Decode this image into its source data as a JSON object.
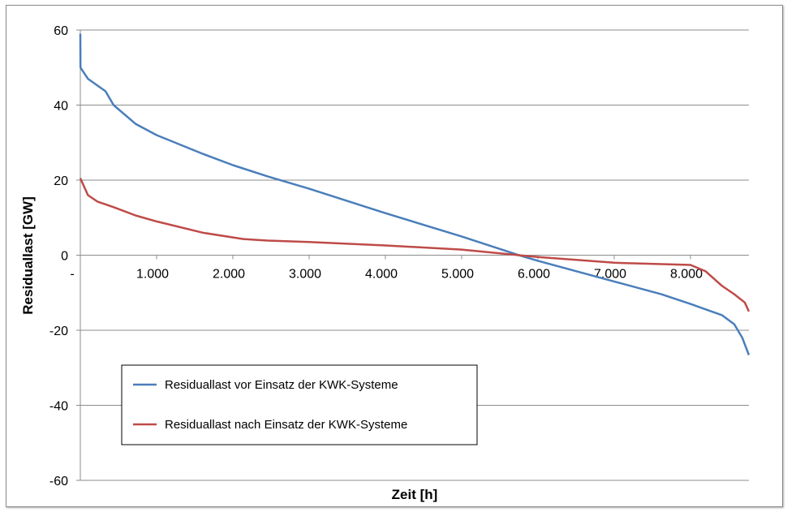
{
  "chart_data": {
    "type": "line",
    "xlabel": "Zeit [h]",
    "ylabel": "Residuallast [GW]",
    "xlim": [
      0,
      8760
    ],
    "ylim": [
      -60,
      60
    ],
    "x_ticks": [
      0,
      1000,
      2000,
      3000,
      4000,
      5000,
      6000,
      7000,
      8000
    ],
    "x_tick_labels": [
      "-",
      "1.000",
      "2.000",
      "3.000",
      "4.000",
      "5.000",
      "6.000",
      "7.000",
      "8.000"
    ],
    "y_ticks": [
      60,
      40,
      20,
      0,
      -20,
      -40,
      -60
    ],
    "y_tick_labels": [
      "60",
      "40",
      "20",
      "0",
      "-20",
      "-40",
      "-60"
    ],
    "grid": "horizontal",
    "legend_position": "bottom-left",
    "series": [
      {
        "name": "Residuallast vor Einsatz der KWK-Systeme",
        "color": "#4a7ebb",
        "x": [
          0,
          2,
          100,
          330,
          436,
          723,
          1000,
          1606,
          2000,
          2457,
          3000,
          4000,
          5000,
          5750,
          6000,
          7000,
          7617,
          8000,
          8415,
          8574,
          8680,
          8766
        ],
        "y": [
          59,
          50,
          47,
          43.7,
          40,
          35,
          32,
          27,
          24,
          21,
          17.7,
          11.2,
          5,
          0,
          -1.5,
          -7,
          -10.4,
          -13,
          -16,
          -18.4,
          -22,
          -26.6
        ]
      },
      {
        "name": "Residuallast nach Einsatz der KWK-Systeme",
        "color": "#be4b48",
        "x": [
          0,
          100,
          223,
          436,
          723,
          1000,
          1606,
          2138,
          2457,
          3000,
          4000,
          5000,
          5750,
          6000,
          7000,
          8000,
          8200,
          8415,
          8574,
          8713,
          8766
        ],
        "y": [
          20.5,
          16,
          14.3,
          12.8,
          10.6,
          9,
          6,
          4.3,
          3.9,
          3.5,
          2.6,
          1.5,
          0,
          -0.5,
          -2,
          -2.6,
          -4.3,
          -8.2,
          -10.4,
          -12.6,
          -15
        ]
      }
    ]
  }
}
